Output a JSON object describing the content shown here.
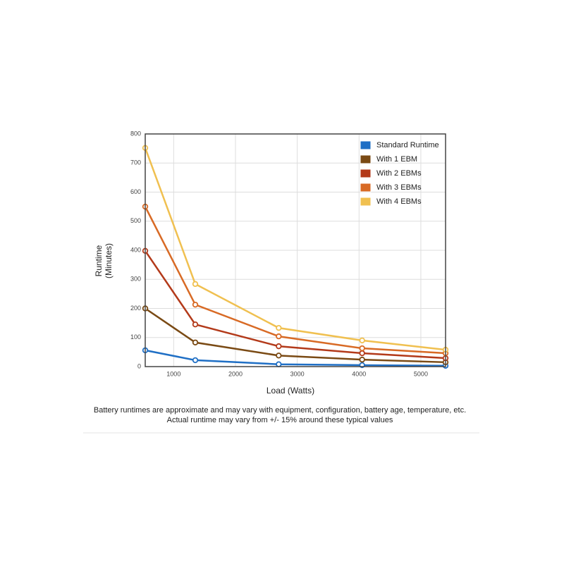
{
  "chart_data": {
    "type": "line",
    "ylabel": [
      "Runtime",
      "(Minutes)"
    ],
    "xlabel": "Load (Watts)",
    "x": [
      540,
      1350,
      2700,
      4050,
      5400
    ],
    "xlim": [
      540,
      5400
    ],
    "xticks": [
      1000,
      2000,
      3000,
      4000,
      5000
    ],
    "ylim": [
      0,
      800
    ],
    "yticks": [
      0,
      100,
      200,
      300,
      400,
      500,
      600,
      700,
      800
    ],
    "grid": true,
    "legend": "top-right",
    "series": [
      {
        "name": "Standard Runtime",
        "color": "#1f6fc5",
        "values": [
          56,
          22,
          8,
          5,
          3
        ]
      },
      {
        "name": "With 1 EBM",
        "color": "#7a4a14",
        "values": [
          200,
          83,
          38,
          24,
          15
        ]
      },
      {
        "name": "With 2 EBMs",
        "color": "#b33a1a",
        "values": [
          398,
          145,
          70,
          46,
          29
        ]
      },
      {
        "name": "With 3 EBMs",
        "color": "#d86a25",
        "values": [
          550,
          213,
          104,
          63,
          46
        ]
      },
      {
        "name": "With 4 EBMs",
        "color": "#f0c050",
        "values": [
          752,
          284,
          133,
          90,
          58
        ]
      }
    ],
    "notes": [
      "Battery runtimes are approximate and may vary with equipment, configuration, battery age, temperature, etc.",
      "Actual runtime may vary from +/- 15% around these typical values"
    ]
  }
}
